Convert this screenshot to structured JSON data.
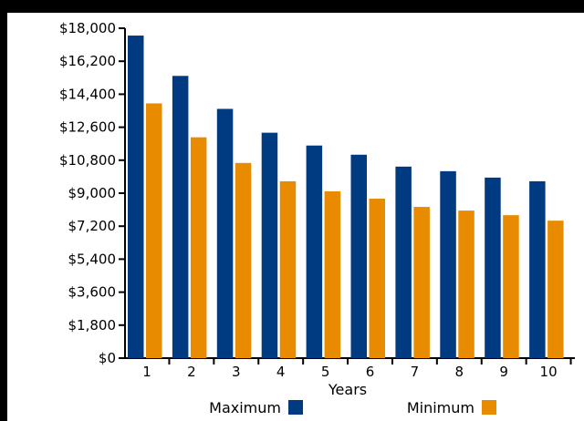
{
  "chart_data": {
    "type": "bar",
    "title": "",
    "xlabel": "Years",
    "ylabel": "",
    "categories": [
      "1",
      "2",
      "3",
      "4",
      "5",
      "6",
      "7",
      "8",
      "9",
      "10"
    ],
    "series": [
      {
        "name": "Maximum",
        "color": "#003A80",
        "values": [
          17600,
          15400,
          13600,
          12300,
          11600,
          11100,
          10450,
          10200,
          9850,
          9650
        ]
      },
      {
        "name": "Minimum",
        "color": "#E88B00",
        "values": [
          13900,
          12050,
          10650,
          9650,
          9100,
          8700,
          8250,
          8050,
          7800,
          7500
        ]
      }
    ],
    "ylim": [
      0,
      18000
    ],
    "y_ticks": [
      {
        "value": 0,
        "label": "$0"
      },
      {
        "value": 1800,
        "label": "$1,800"
      },
      {
        "value": 3600,
        "label": "$3,600"
      },
      {
        "value": 5400,
        "label": "$5,400"
      },
      {
        "value": 7200,
        "label": "$7,200"
      },
      {
        "value": 9000,
        "label": "$9,000"
      },
      {
        "value": 10800,
        "label": "$10,800"
      },
      {
        "value": 12600,
        "label": "$12,600"
      },
      {
        "value": 14400,
        "label": "$14,400"
      },
      {
        "value": 16200,
        "label": "$16,200"
      },
      {
        "value": 18000,
        "label": "$18,000"
      }
    ],
    "grid": false,
    "legend": "bottom"
  }
}
